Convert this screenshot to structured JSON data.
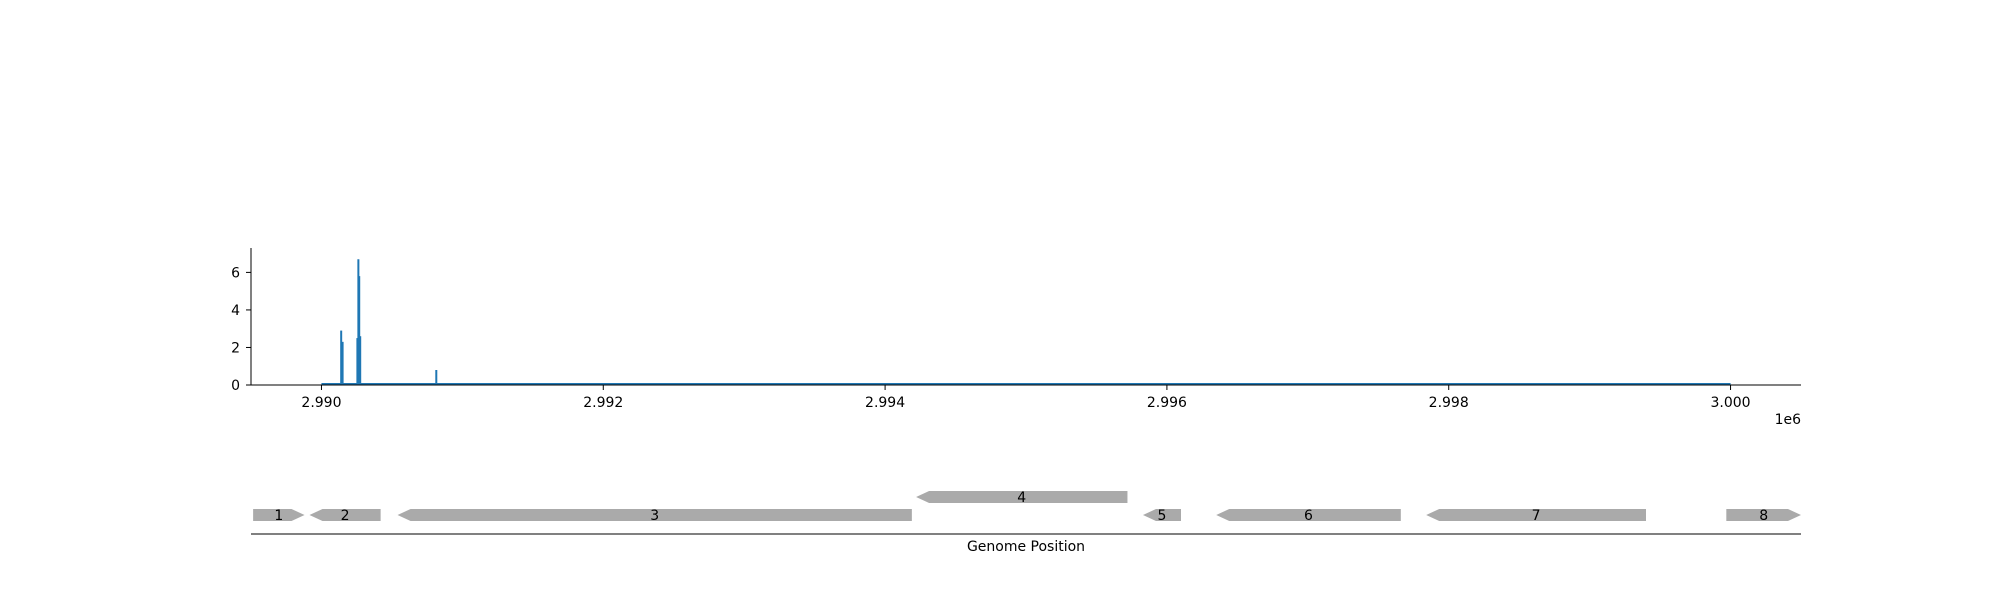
{
  "chart_data": [
    {
      "type": "line",
      "title": "",
      "xlabel": "",
      "ylabel": "",
      "xlim": [
        2989500,
        3000500
      ],
      "ylim": [
        0,
        7.3
      ],
      "x_ticks": [
        2990000,
        2992000,
        2994000,
        2996000,
        2998000,
        3000000
      ],
      "x_tick_labels": [
        "2.990",
        "2.992",
        "2.994",
        "2.996",
        "2.998",
        "3.000"
      ],
      "x_offset_label": "1e6",
      "y_ticks": [
        0,
        2,
        4,
        6
      ],
      "y_tick_labels": [
        "0",
        "2",
        "4",
        "6"
      ],
      "baseline": {
        "x_start": 2990000,
        "x_end": 3000000,
        "value": 0
      },
      "series": [
        {
          "color": "#1f77b4",
          "x": [
            2990140,
            2990150,
            2990255,
            2990262,
            2990268,
            2990275,
            2990815
          ],
          "y": [
            2.9,
            2.3,
            2.5,
            6.7,
            5.8,
            2.6,
            0.8
          ]
        }
      ],
      "grid": false
    },
    {
      "type": "gene_map",
      "xlabel": "Genome Position",
      "color": "#aaaaaa",
      "genes": [
        {
          "label": "1",
          "start": 2989515,
          "end": 2989880,
          "strand": "+",
          "row": 0
        },
        {
          "label": "2",
          "start": 2989915,
          "end": 2990420,
          "strand": "-",
          "row": 0
        },
        {
          "label": "3",
          "start": 2990540,
          "end": 2994190,
          "strand": "-",
          "row": 0
        },
        {
          "label": "4",
          "start": 2994220,
          "end": 2995720,
          "strand": "-",
          "row": 1
        },
        {
          "label": "5",
          "start": 2995830,
          "end": 2996100,
          "strand": "-",
          "row": 0
        },
        {
          "label": "6",
          "start": 2996350,
          "end": 2997660,
          "strand": "-",
          "row": 0
        },
        {
          "label": "7",
          "start": 2997840,
          "end": 2999400,
          "strand": "-",
          "row": 0
        },
        {
          "label": "8",
          "start": 2999970,
          "end": 3000500,
          "strand": "+",
          "row": 0
        }
      ]
    }
  ]
}
